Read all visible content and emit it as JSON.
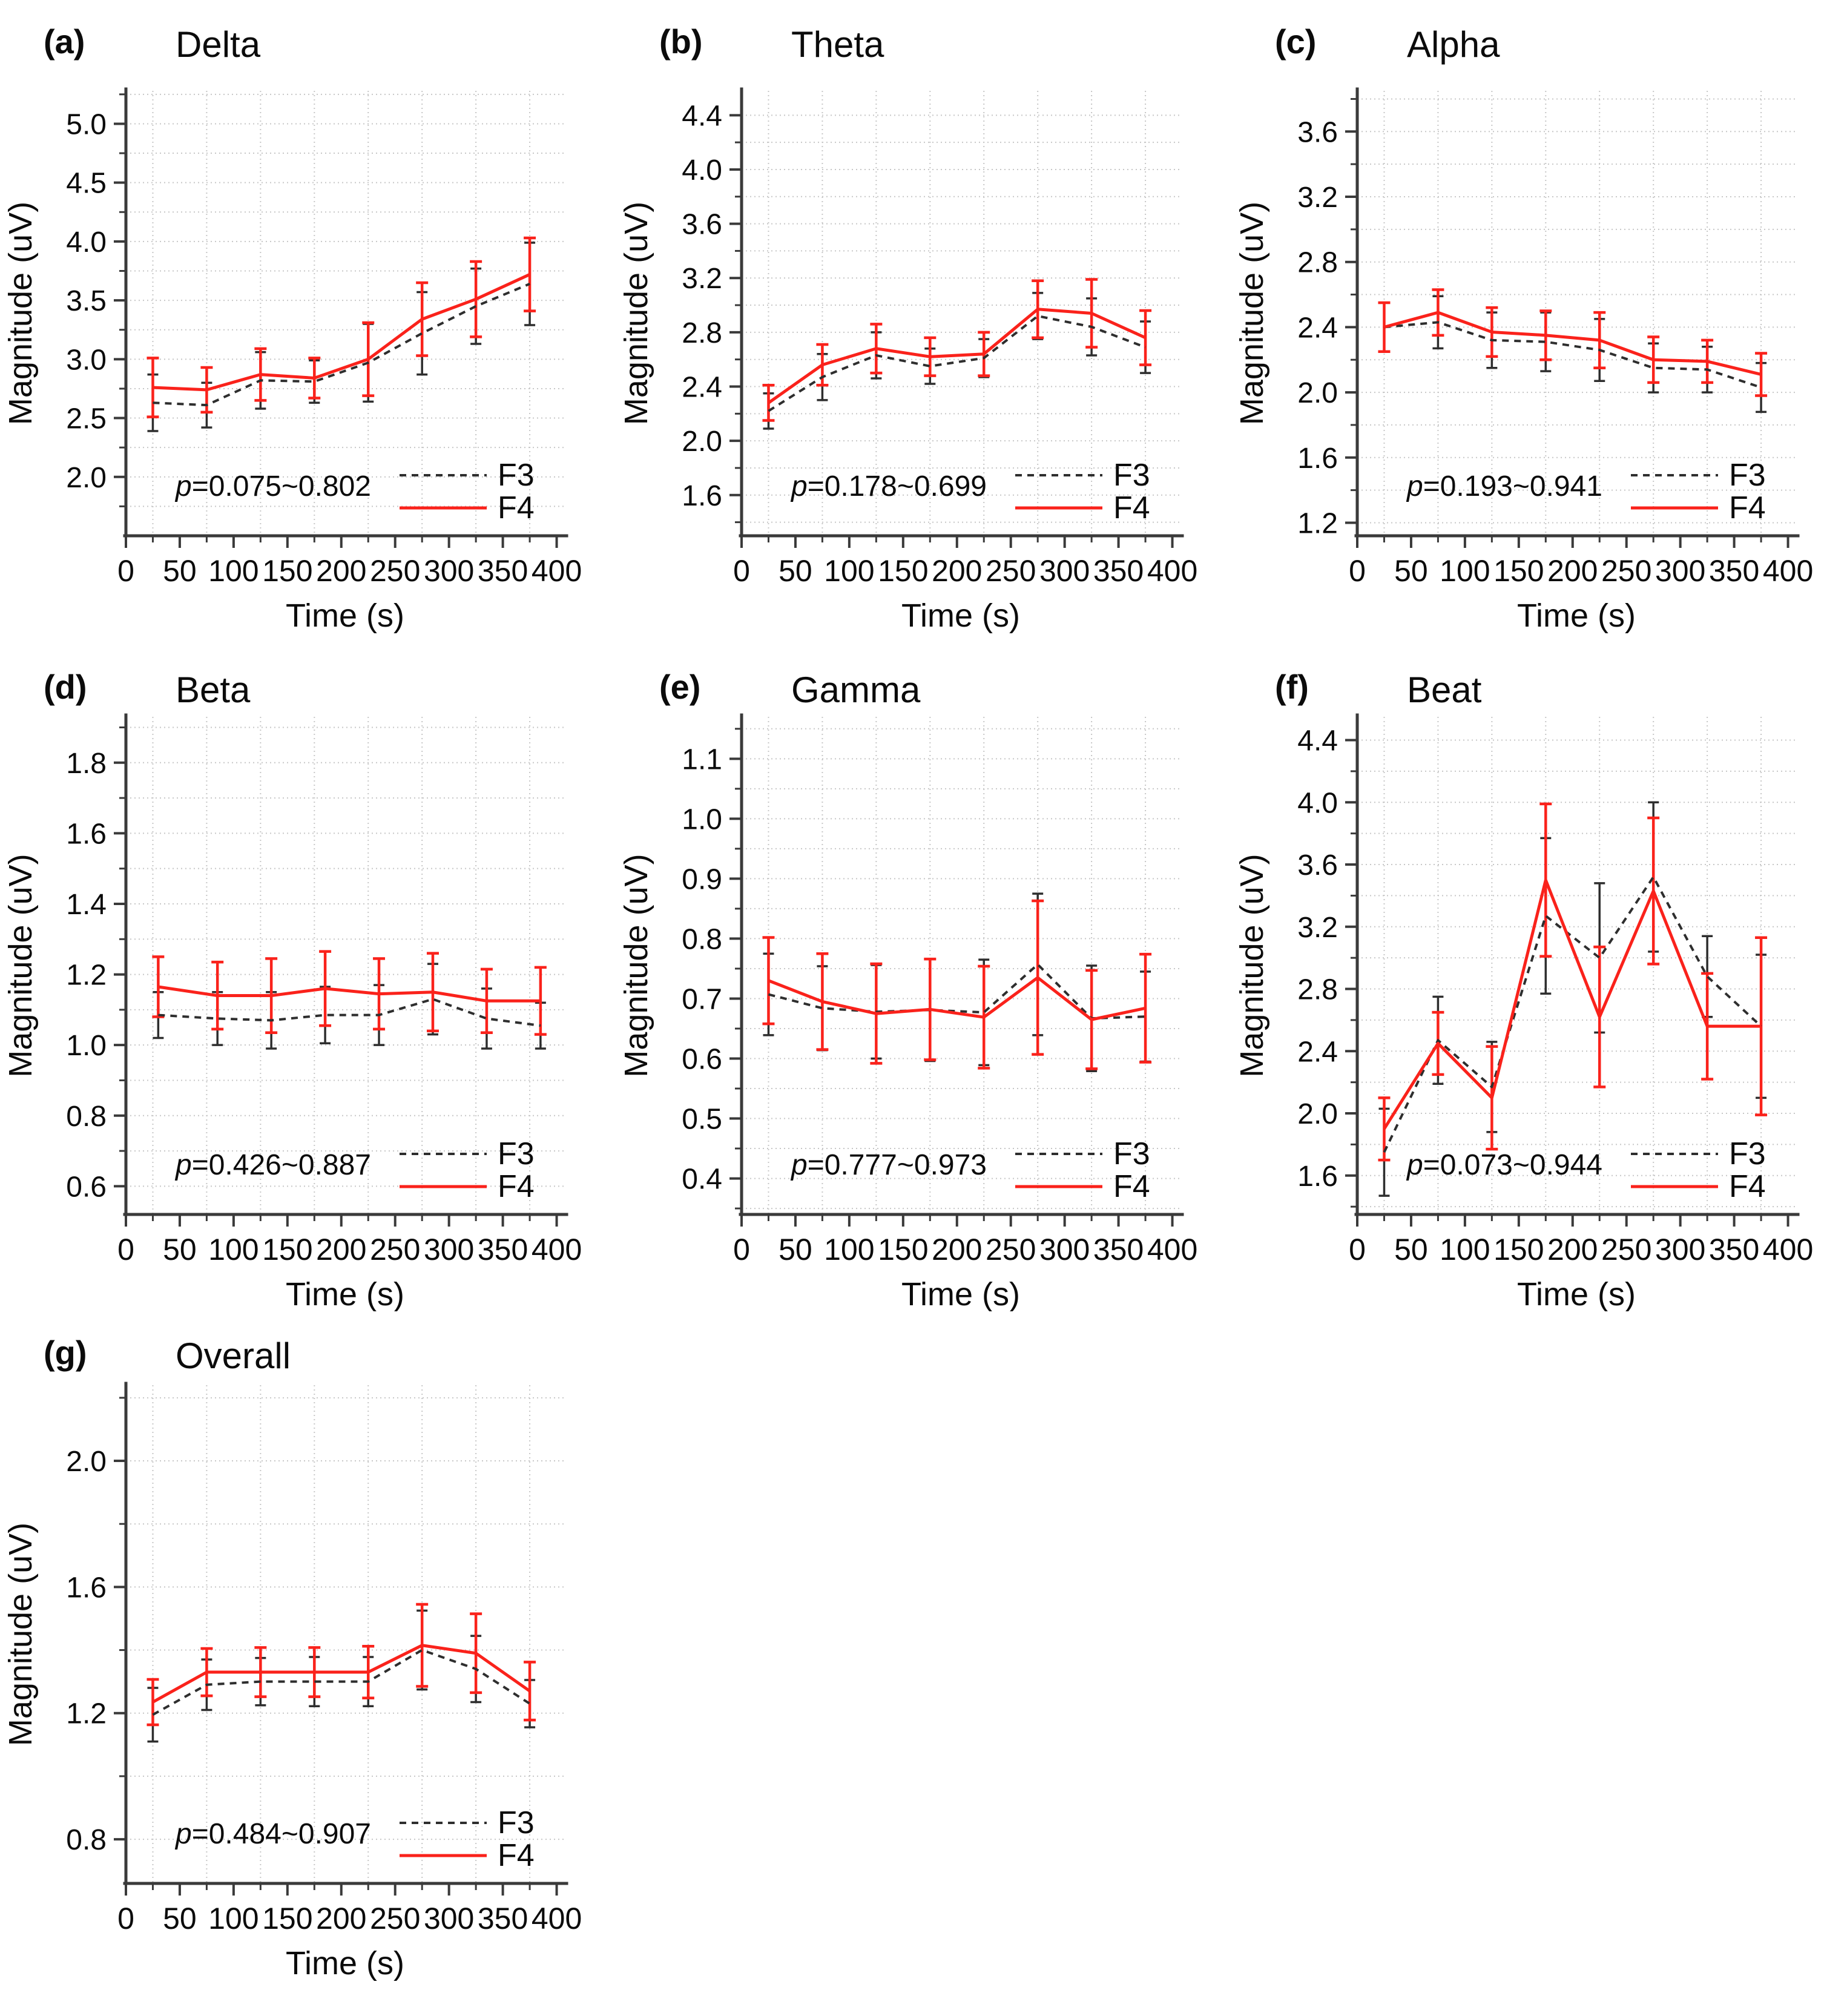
{
  "figure": {
    "background": "#ffffff",
    "grid_color": "#c7c7c7",
    "axis_color": "#3a3a3a",
    "text_color": "#0b0b0b",
    "f3_color": "#2e2e2e",
    "f4_color": "#fa221b",
    "legend_labels": [
      "F3",
      "F4"
    ],
    "xlabel": "Time (s)",
    "ylabel": "Magnitude (uV)"
  },
  "chart_data": [
    {
      "id": "a",
      "type": "line",
      "panel_label": "(a)",
      "title": "Delta",
      "p_label": "p=0.075~0.802",
      "xlabel": "Time (s)",
      "ylabel": "Magnitude (uV)",
      "x": [
        25,
        75,
        125,
        175,
        225,
        275,
        325,
        375
      ],
      "xticks": [
        0,
        50,
        100,
        150,
        200,
        250,
        300,
        350,
        400
      ],
      "xlim": [
        0,
        407
      ],
      "yticks": [
        2.0,
        2.5,
        3.0,
        3.5,
        4.0,
        4.5,
        5.0
      ],
      "ylim": [
        1.5,
        5.28
      ],
      "grid": true,
      "legend_position": "bottom-right",
      "series": [
        {
          "name": "F3",
          "style": "dashed",
          "color": "#2e2e2e",
          "values": [
            2.63,
            2.61,
            2.82,
            2.81,
            2.97,
            3.22,
            3.45,
            3.64
          ],
          "errors": [
            0.24,
            0.19,
            0.24,
            0.18,
            0.33,
            0.35,
            0.32,
            0.35
          ]
        },
        {
          "name": "F4",
          "style": "solid",
          "color": "#fa221b",
          "values": [
            2.76,
            2.74,
            2.87,
            2.84,
            3.0,
            3.34,
            3.51,
            3.72
          ],
          "errors": [
            0.25,
            0.19,
            0.22,
            0.17,
            0.31,
            0.31,
            0.32,
            0.31
          ]
        }
      ]
    },
    {
      "id": "b",
      "type": "line",
      "panel_label": "(b)",
      "title": "Theta",
      "p_label": "p=0.178~0.699",
      "xlabel": "Time (s)",
      "ylabel": "Magnitude (uV)",
      "x": [
        25,
        75,
        125,
        175,
        225,
        275,
        325,
        375
      ],
      "xticks": [
        0,
        50,
        100,
        150,
        200,
        250,
        300,
        350,
        400
      ],
      "xlim": [
        0,
        407
      ],
      "yticks": [
        1.6,
        2.0,
        2.4,
        2.8,
        3.2,
        3.6,
        4.0,
        4.4
      ],
      "ylim": [
        1.3,
        4.58
      ],
      "grid": true,
      "legend_position": "bottom-right",
      "series": [
        {
          "name": "F3",
          "style": "dashed",
          "color": "#2e2e2e",
          "values": [
            2.22,
            2.47,
            2.63,
            2.55,
            2.61,
            2.92,
            2.84,
            2.69
          ],
          "errors": [
            0.13,
            0.17,
            0.17,
            0.13,
            0.14,
            0.17,
            0.21,
            0.19
          ]
        },
        {
          "name": "F4",
          "style": "solid",
          "color": "#fa221b",
          "values": [
            2.28,
            2.56,
            2.68,
            2.62,
            2.64,
            2.97,
            2.94,
            2.76
          ],
          "errors": [
            0.13,
            0.15,
            0.18,
            0.14,
            0.16,
            0.21,
            0.25,
            0.2
          ]
        }
      ]
    },
    {
      "id": "c",
      "type": "line",
      "panel_label": "(c)",
      "title": "Alpha",
      "p_label": "p=0.193~0.941",
      "xlabel": "Time (s)",
      "ylabel": "Magnitude (uV)",
      "x": [
        25,
        75,
        125,
        175,
        225,
        275,
        325,
        375
      ],
      "xticks": [
        0,
        50,
        100,
        150,
        200,
        250,
        300,
        350,
        400
      ],
      "xlim": [
        0,
        407
      ],
      "yticks": [
        1.2,
        1.6,
        2.0,
        2.4,
        2.8,
        3.2,
        3.6
      ],
      "ylim": [
        1.12,
        3.85
      ],
      "grid": true,
      "legend_position": "bottom-right",
      "series": [
        {
          "name": "F3",
          "style": "dashed",
          "color": "#2e2e2e",
          "values": [
            2.4,
            2.43,
            2.32,
            2.31,
            2.26,
            2.15,
            2.14,
            2.03
          ],
          "errors": [
            0.15,
            0.16,
            0.17,
            0.18,
            0.19,
            0.15,
            0.14,
            0.15
          ]
        },
        {
          "name": "F4",
          "style": "solid",
          "color": "#fa221b",
          "values": [
            2.4,
            2.49,
            2.37,
            2.35,
            2.32,
            2.2,
            2.19,
            2.11
          ],
          "errors": [
            0.15,
            0.14,
            0.15,
            0.15,
            0.17,
            0.14,
            0.13,
            0.13
          ]
        }
      ]
    },
    {
      "id": "d",
      "type": "line",
      "panel_label": "(d)",
      "title": "Beta",
      "p_label": "p=0.426~0.887",
      "xlabel": "Time (s)",
      "ylabel": "Magnitude (uV)",
      "x": [
        30,
        85,
        135,
        185,
        235,
        285,
        335,
        385
      ],
      "xticks": [
        0,
        50,
        100,
        150,
        200,
        250,
        300,
        350,
        400
      ],
      "xlim": [
        0,
        407
      ],
      "yticks": [
        0.6,
        0.8,
        1.0,
        1.2,
        1.4,
        1.6,
        1.8
      ],
      "ylim": [
        0.52,
        1.93
      ],
      "grid": true,
      "legend_position": "bottom-right",
      "series": [
        {
          "name": "F3",
          "style": "dashed",
          "color": "#2e2e2e",
          "values": [
            1.085,
            1.075,
            1.07,
            1.085,
            1.085,
            1.13,
            1.075,
            1.055
          ],
          "errors": [
            0.065,
            0.075,
            0.08,
            0.08,
            0.085,
            0.1,
            0.085,
            0.065
          ]
        },
        {
          "name": "F4",
          "style": "solid",
          "color": "#fa221b",
          "values": [
            1.165,
            1.14,
            1.14,
            1.16,
            1.145,
            1.15,
            1.125,
            1.125
          ],
          "errors": [
            0.085,
            0.095,
            0.105,
            0.105,
            0.1,
            0.11,
            0.09,
            0.095
          ]
        }
      ]
    },
    {
      "id": "e",
      "type": "line",
      "panel_label": "(e)",
      "title": "Gamma",
      "p_label": "p=0.777~0.973",
      "xlabel": "Time (s)",
      "ylabel": "Magnitude (uV)",
      "x": [
        25,
        75,
        125,
        175,
        225,
        275,
        325,
        375
      ],
      "xticks": [
        0,
        50,
        100,
        150,
        200,
        250,
        300,
        350,
        400
      ],
      "xlim": [
        0,
        407
      ],
      "yticks": [
        0.4,
        0.5,
        0.6,
        0.7,
        0.8,
        0.9,
        1.0,
        1.1
      ],
      "ylim": [
        0.34,
        1.17
      ],
      "grid": true,
      "legend_position": "bottom-right",
      "series": [
        {
          "name": "F3",
          "style": "dashed",
          "color": "#2e2e2e",
          "values": [
            0.707,
            0.684,
            0.678,
            0.681,
            0.677,
            0.757,
            0.667,
            0.67
          ],
          "errors": [
            0.068,
            0.07,
            0.078,
            0.085,
            0.088,
            0.118,
            0.088,
            0.075
          ]
        },
        {
          "name": "F4",
          "style": "solid",
          "color": "#fa221b",
          "values": [
            0.73,
            0.695,
            0.675,
            0.682,
            0.669,
            0.735,
            0.665,
            0.684
          ],
          "errors": [
            0.072,
            0.08,
            0.083,
            0.084,
            0.085,
            0.128,
            0.082,
            0.09
          ]
        }
      ]
    },
    {
      "id": "f",
      "type": "line",
      "panel_label": "(f)",
      "title": "Beat",
      "p_label": "p=0.073~0.944",
      "xlabel": "Time (s)",
      "ylabel": "Magnitude (uV)",
      "x": [
        25,
        75,
        125,
        175,
        225,
        275,
        325,
        375
      ],
      "xticks": [
        0,
        50,
        100,
        150,
        200,
        250,
        300,
        350,
        400
      ],
      "xlim": [
        0,
        407
      ],
      "yticks": [
        1.6,
        2.0,
        2.4,
        2.8,
        3.2,
        3.6,
        4.0,
        4.4
      ],
      "ylim": [
        1.35,
        4.55
      ],
      "grid": true,
      "legend_position": "bottom-right",
      "series": [
        {
          "name": "F3",
          "style": "dashed",
          "color": "#2e2e2e",
          "values": [
            1.75,
            2.47,
            2.17,
            3.27,
            3.0,
            3.52,
            2.88,
            2.56
          ],
          "errors": [
            0.28,
            0.28,
            0.29,
            0.5,
            0.48,
            0.48,
            0.26,
            0.46
          ]
        },
        {
          "name": "F4",
          "style": "solid",
          "color": "#fa221b",
          "values": [
            1.9,
            2.45,
            2.1,
            3.5,
            2.62,
            3.43,
            2.56,
            2.56
          ],
          "errors": [
            0.2,
            0.2,
            0.33,
            0.49,
            0.45,
            0.47,
            0.34,
            0.57
          ]
        }
      ]
    },
    {
      "id": "g",
      "type": "line",
      "panel_label": "(g)",
      "title": "Overall",
      "p_label": "p=0.484~0.907",
      "xlabel": "Time (s)",
      "ylabel": "Magnitude (uV)",
      "x": [
        25,
        75,
        125,
        175,
        225,
        275,
        325,
        375
      ],
      "xticks": [
        0,
        50,
        100,
        150,
        200,
        250,
        300,
        350,
        400
      ],
      "xlim": [
        0,
        407
      ],
      "yticks": [
        0.8,
        1.2,
        1.6,
        2.0
      ],
      "ylim": [
        0.66,
        2.24
      ],
      "grid": true,
      "legend_position": "bottom-right",
      "series": [
        {
          "name": "F3",
          "style": "dashed",
          "color": "#2e2e2e",
          "values": [
            1.195,
            1.29,
            1.3,
            1.3,
            1.3,
            1.4,
            1.34,
            1.23
          ],
          "errors": [
            0.085,
            0.08,
            0.075,
            0.078,
            0.078,
            0.125,
            0.105,
            0.075
          ]
        },
        {
          "name": "F4",
          "style": "solid",
          "color": "#fa221b",
          "values": [
            1.235,
            1.33,
            1.33,
            1.33,
            1.33,
            1.415,
            1.39,
            1.27
          ],
          "errors": [
            0.072,
            0.075,
            0.078,
            0.078,
            0.082,
            0.13,
            0.125,
            0.092
          ]
        }
      ]
    }
  ]
}
